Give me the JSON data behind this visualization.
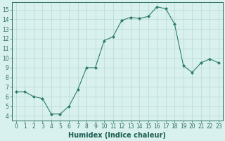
{
  "x": [
    0,
    1,
    2,
    3,
    4,
    5,
    6,
    7,
    8,
    9,
    10,
    11,
    12,
    13,
    14,
    15,
    16,
    17,
    18,
    19,
    20,
    21,
    22,
    23
  ],
  "y": [
    6.5,
    6.5,
    6.0,
    5.8,
    4.2,
    4.2,
    5.0,
    6.7,
    9.0,
    9.0,
    11.8,
    12.2,
    13.9,
    14.2,
    14.1,
    14.3,
    15.3,
    15.1,
    13.5,
    9.2,
    8.5,
    9.5,
    9.9,
    9.5
  ],
  "line_color": "#2d7d6e",
  "marker": "D",
  "marker_size": 2.0,
  "bg_color": "#d8f0ee",
  "grid_color": "#b8d8d0",
  "xlabel": "Humidex (Indice chaleur)",
  "xlim": [
    -0.5,
    23.5
  ],
  "ylim": [
    3.5,
    15.8
  ],
  "yticks": [
    4,
    5,
    6,
    7,
    8,
    9,
    10,
    11,
    12,
    13,
    14,
    15
  ],
  "xticks": [
    0,
    1,
    2,
    3,
    4,
    5,
    6,
    7,
    8,
    9,
    10,
    11,
    12,
    13,
    14,
    15,
    16,
    17,
    18,
    19,
    20,
    21,
    22,
    23
  ],
  "tick_color": "#2d6e60",
  "label_color": "#1a5c50",
  "spine_color": "#2d6e60",
  "font_size_label": 7.0,
  "font_size_tick": 5.5
}
